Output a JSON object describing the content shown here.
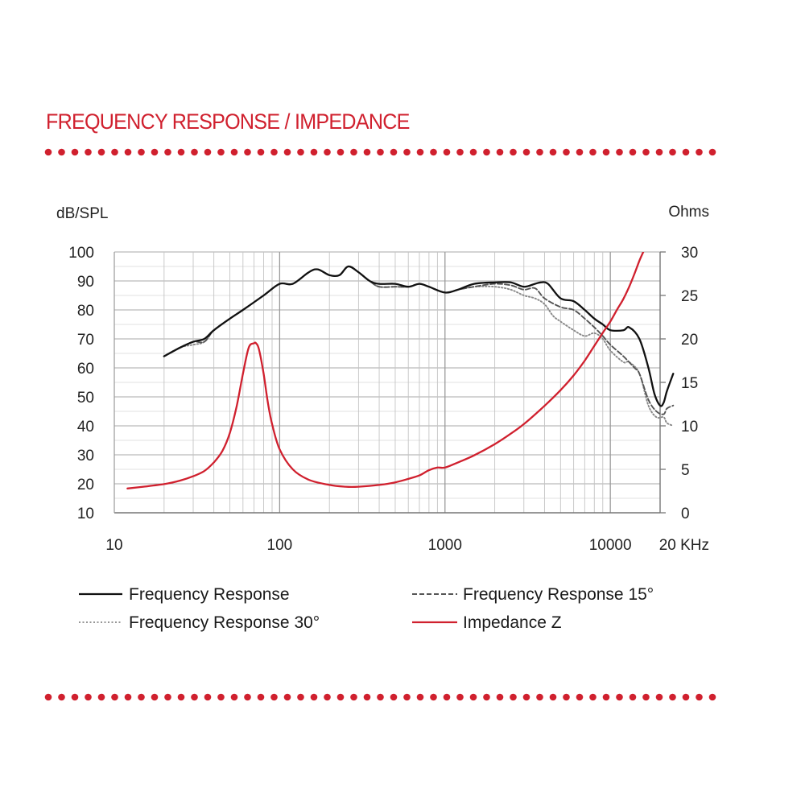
{
  "page": {
    "title": "FREQUENCY RESPONSE / IMPEDANCE",
    "accent_color": "#d0202e"
  },
  "chart_data": {
    "type": "line",
    "title": "FREQUENCY RESPONSE / IMPEDANCE",
    "xscale": "log",
    "xlim": [
      10,
      20000
    ],
    "ylim_left": [
      10,
      100
    ],
    "ylim_right": [
      0,
      30
    ],
    "ylabel_left": "dB/SPL",
    "ylabel_right": "Ohms",
    "x_ticks": [
      10,
      100,
      1000,
      10000
    ],
    "x_tick_labels": [
      "10",
      "100",
      "1000",
      "10000"
    ],
    "x_end_label": "20 KHz",
    "y_left_ticks": [
      100,
      90,
      80,
      70,
      60,
      50,
      40,
      30,
      20,
      10
    ],
    "y_right_ticks": [
      30,
      25,
      20,
      15,
      10,
      5,
      0
    ],
    "grid": true,
    "legend_position": "bottom",
    "series": [
      {
        "name": "Frequency Response",
        "axis": "left",
        "style": "solid",
        "color": "#111111",
        "x": [
          20,
          25,
          30,
          35,
          40,
          50,
          60,
          80,
          100,
          120,
          150,
          170,
          200,
          230,
          260,
          300,
          350,
          400,
          500,
          600,
          700,
          800,
          1000,
          1200,
          1500,
          2000,
          2500,
          3000,
          3500,
          3800,
          4200,
          5000,
          6000,
          7000,
          8000,
          9000,
          10000,
          12000,
          13000,
          15000,
          17000,
          18500,
          20000,
          21000,
          22000,
          24000
        ],
        "y": [
          64,
          67,
          69,
          70,
          73,
          77,
          80,
          85,
          89,
          89,
          93,
          94,
          92,
          92,
          95,
          93,
          90,
          89,
          89,
          88,
          89,
          88,
          86,
          87,
          89,
          89.5,
          89.5,
          88,
          89,
          89.5,
          89,
          84,
          83,
          80,
          77,
          75,
          73,
          73,
          74,
          70,
          60,
          51,
          47,
          48,
          52,
          58
        ]
      },
      {
        "name": "Frequency Response 15°",
        "axis": "left",
        "style": "dashed",
        "color": "#555555",
        "x": [
          20,
          25,
          30,
          35,
          40,
          50,
          60,
          80,
          100,
          120,
          150,
          170,
          200,
          230,
          260,
          300,
          350,
          400,
          500,
          600,
          700,
          800,
          1000,
          1200,
          1500,
          2000,
          2500,
          3000,
          3500,
          4000,
          5000,
          6000,
          7000,
          8000,
          9000,
          10000,
          12000,
          14000,
          15000,
          17000,
          19000,
          21000,
          22000,
          24000
        ],
        "y": [
          64,
          67,
          69,
          69,
          73,
          77,
          80,
          85,
          89,
          89,
          93,
          94,
          92,
          92,
          95,
          93,
          90,
          88,
          88,
          88,
          89,
          88,
          86,
          87,
          88,
          89,
          88.5,
          87,
          87.5,
          84,
          81,
          80,
          77,
          74,
          71,
          68,
          64,
          60,
          58,
          49,
          45,
          44,
          46,
          47
        ]
      },
      {
        "name": "Frequency Response 30°",
        "axis": "left",
        "style": "dotted",
        "color": "#888888",
        "x": [
          20,
          25,
          30,
          35,
          40,
          50,
          60,
          80,
          100,
          120,
          150,
          170,
          200,
          230,
          260,
          300,
          350,
          400,
          500,
          600,
          700,
          800,
          1000,
          1200,
          1500,
          2000,
          2500,
          3000,
          3500,
          4000,
          4500,
          5000,
          6000,
          7000,
          8000,
          9000,
          10000,
          12000,
          13000,
          15000,
          17000,
          19000,
          21000,
          22000,
          24000
        ],
        "y": [
          64,
          67,
          68,
          69,
          73,
          77,
          80,
          85,
          89,
          89,
          93,
          94,
          92,
          92,
          95,
          93,
          90,
          88,
          88,
          88,
          89,
          88,
          86,
          87,
          88,
          88,
          87,
          85,
          84,
          82,
          78,
          76,
          73,
          71,
          72,
          70,
          66,
          62,
          62,
          58,
          47,
          43,
          43,
          41,
          40
        ]
      },
      {
        "name": "Impedance Z",
        "axis": "right",
        "style": "solid",
        "color": "#d0202e",
        "x": [
          12,
          15,
          20,
          25,
          30,
          35,
          40,
          45,
          50,
          55,
          60,
          65,
          70,
          72,
          75,
          80,
          85,
          90,
          100,
          120,
          150,
          200,
          250,
          300,
          400,
          500,
          600,
          700,
          800,
          900,
          1000,
          1200,
          1500,
          2000,
          2500,
          3000,
          4000,
          5000,
          6000,
          7000,
          8000,
          9000,
          10000,
          11000,
          12000,
          13000,
          14000,
          15000,
          16000
        ],
        "y": [
          2.8,
          3.0,
          3.3,
          3.7,
          4.2,
          4.8,
          5.8,
          7.1,
          9.2,
          12.3,
          16.0,
          19.0,
          19.5,
          19.5,
          18.8,
          16.0,
          12.6,
          10.2,
          7.3,
          5.0,
          3.8,
          3.2,
          3.0,
          3.0,
          3.2,
          3.5,
          3.9,
          4.3,
          4.9,
          5.2,
          5.2,
          5.8,
          6.6,
          7.9,
          9.1,
          10.2,
          12.3,
          14.1,
          15.8,
          17.5,
          19.2,
          20.7,
          22.0,
          23.4,
          24.6,
          26.0,
          27.5,
          29.0,
          30.2
        ]
      }
    ]
  }
}
